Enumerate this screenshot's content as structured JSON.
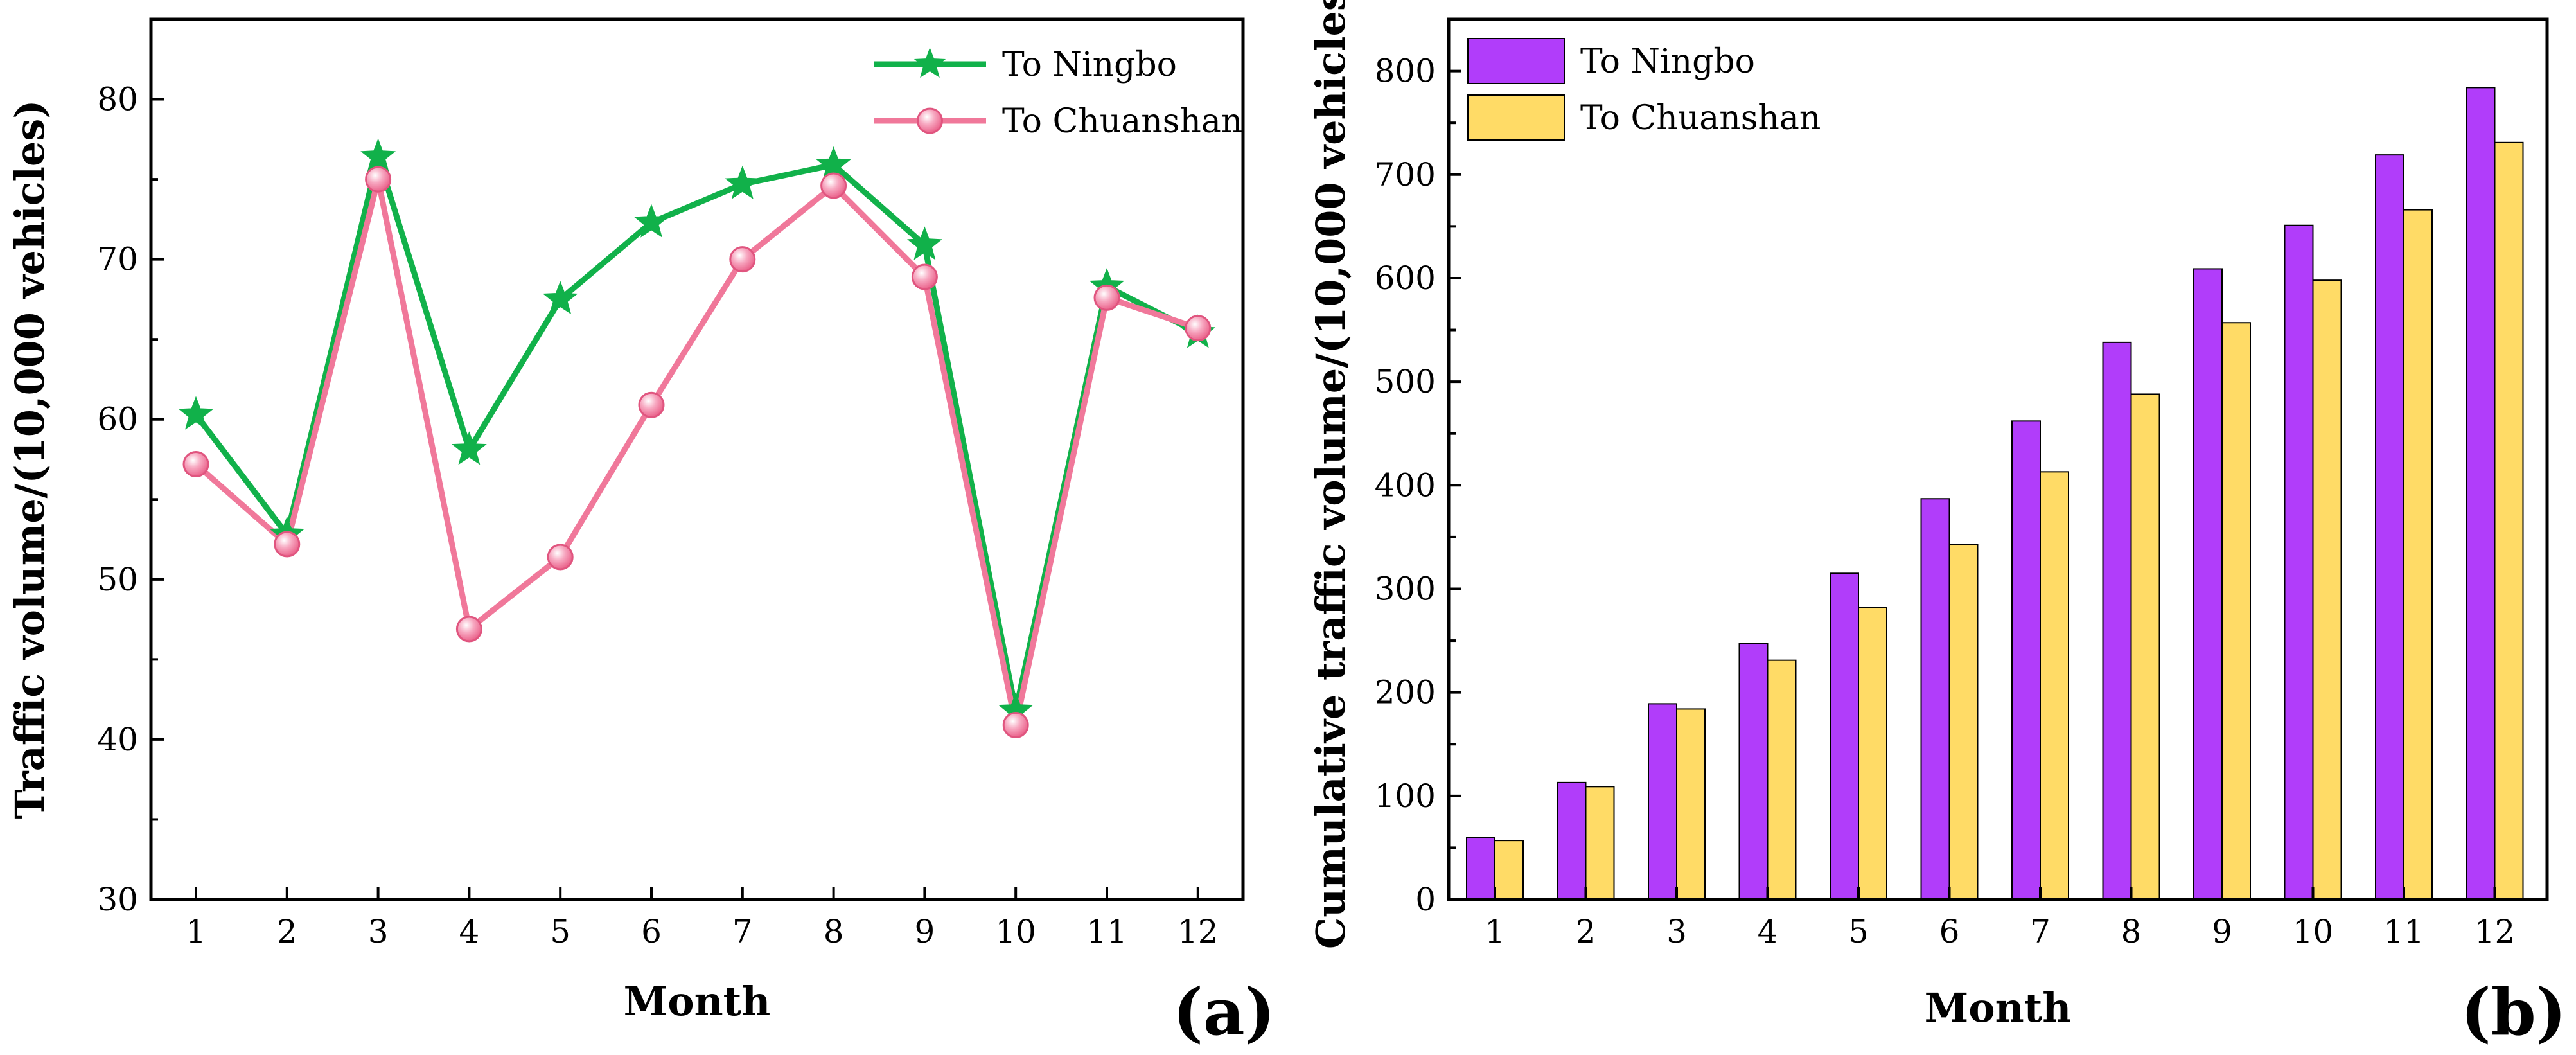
{
  "chart_data": [
    {
      "type": "line",
      "panel_label": "(a)",
      "xlabel": "Month",
      "ylabel": "Traffic volume/(10,000 vehicles)",
      "categories": [
        "1",
        "2",
        "3",
        "4",
        "5",
        "6",
        "7",
        "8",
        "9",
        "10",
        "11",
        "12"
      ],
      "ylim": [
        30,
        85
      ],
      "yticks": [
        30,
        40,
        50,
        60,
        70,
        80
      ],
      "grid": false,
      "legend_position": "top-right",
      "series": [
        {
          "name": "To Ningbo",
          "color": "#11b14a",
          "marker": "star",
          "values": [
            60.3,
            52.8,
            76.4,
            58.1,
            67.5,
            72.3,
            74.7,
            75.9,
            70.9,
            41.8,
            68.3,
            65.4
          ]
        },
        {
          "name": "To Chuanshan",
          "color": "#f0789a",
          "marker": "sphere",
          "values": [
            57.2,
            52.2,
            75.0,
            46.9,
            51.4,
            60.9,
            70.0,
            74.6,
            68.9,
            40.9,
            67.6,
            65.7
          ]
        }
      ]
    },
    {
      "type": "bar",
      "panel_label": "(b)",
      "xlabel": "Month",
      "ylabel": "Cumulative traffic volume/(10,000 vehicles)",
      "categories": [
        "1",
        "2",
        "3",
        "4",
        "5",
        "6",
        "7",
        "8",
        "9",
        "10",
        "11",
        "12"
      ],
      "ylim": [
        0,
        850
      ],
      "yticks": [
        0,
        100,
        200,
        300,
        400,
        500,
        600,
        700,
        800
      ],
      "grid": false,
      "legend_position": "top-left",
      "series": [
        {
          "name": "To Ningbo",
          "color": "#b13dfa",
          "values": [
            60,
            113,
            189,
            247,
            315,
            387,
            462,
            538,
            609,
            651,
            719,
            784
          ]
        },
        {
          "name": "To Chuanshan",
          "color": "#ffdb66",
          "values": [
            57,
            109,
            184,
            231,
            282,
            343,
            413,
            488,
            557,
            598,
            666,
            731
          ]
        }
      ]
    }
  ]
}
